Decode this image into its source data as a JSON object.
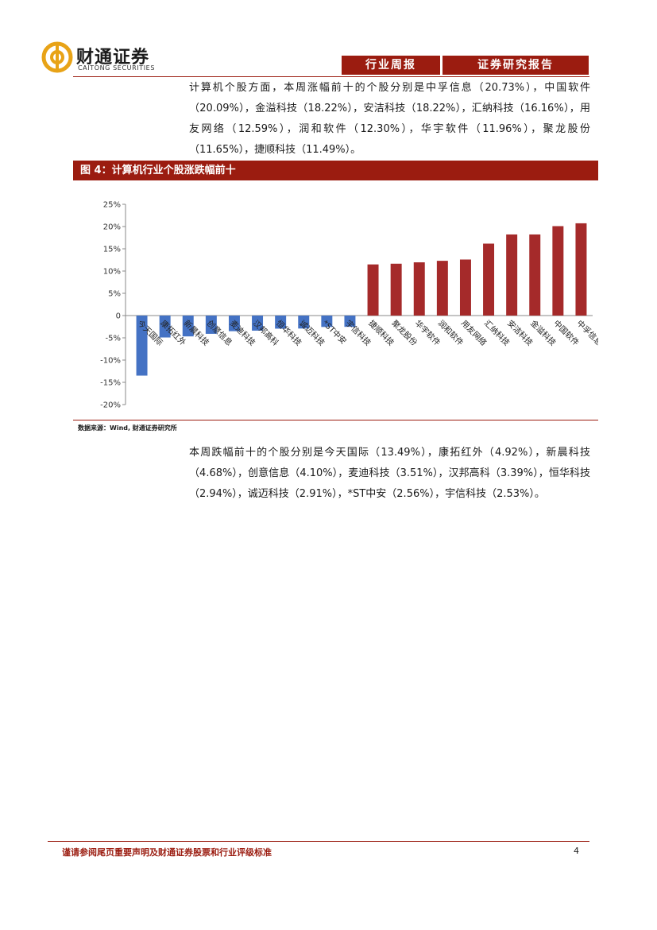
{
  "header": {
    "logo_cn": "财通证券",
    "logo_en": "CAITONG SECURITIES",
    "tag_weekly": "行业周报",
    "tag_report": "证券研究报告",
    "logo_color": "#e8a317"
  },
  "paragraphs": {
    "gainers": "计算机个股方面，本周涨幅前十的个股分别是中孚信息（20.73%），中国软件（20.09%），金溢科技（18.22%），安洁科技（18.22%），汇纳科技（16.16%），用友网络（12.59%），润和软件（12.30%），华宇软件（11.96%），聚龙股份（11.65%），捷顺科技（11.49%）。",
    "losers": "本周跌幅前十的个股分别是今天国际（13.49%），康拓红外（4.92%），新晨科技（4.68%），创意信息（4.10%），麦迪科技（3.51%），汉邦高科（3.39%），恒华科技（2.94%），诚迈科技（2.91%），*ST中安（2.56%），宇信科技（2.53%）。"
  },
  "figure": {
    "title": "图 4：计算机行业个股涨跌幅前十",
    "source": "数据来源：Wind, 财通证券研究所"
  },
  "chart_data": {
    "type": "bar",
    "categories": [
      "今天国际",
      "康拓红外",
      "新晨科技",
      "创意信息",
      "麦迪科技",
      "汉邦高科",
      "恒华科技",
      "诚迈科技",
      "*ST中安",
      "宇信科技",
      "捷顺科技",
      "聚龙股份",
      "华宇软件",
      "润和软件",
      "用友网络",
      "汇纳科技",
      "安洁科技",
      "金溢科技",
      "中国软件",
      "中孚信息"
    ],
    "values": [
      -13.49,
      -4.92,
      -4.68,
      -4.1,
      -3.51,
      -3.39,
      -2.94,
      -2.91,
      -2.56,
      -2.53,
      11.49,
      11.65,
      11.96,
      12.3,
      12.59,
      16.16,
      18.22,
      18.22,
      20.09,
      20.73
    ],
    "ylim": [
      -20,
      25
    ],
    "yticks": [
      25,
      20,
      15,
      10,
      5,
      0,
      -5,
      -10,
      -15,
      -20
    ],
    "ytick_labels": [
      "25%",
      "20%",
      "15%",
      "10%",
      "5%",
      "0",
      "-5%",
      "-10%",
      "-15%",
      "-20%"
    ],
    "negative_color": "#4472c4",
    "positive_color": "#a52a2a",
    "grid": false,
    "legend": "none"
  },
  "footer": {
    "disclaimer": "谨请参阅尾页重要声明及财通证券股票和行业评级标准",
    "page": "4"
  }
}
